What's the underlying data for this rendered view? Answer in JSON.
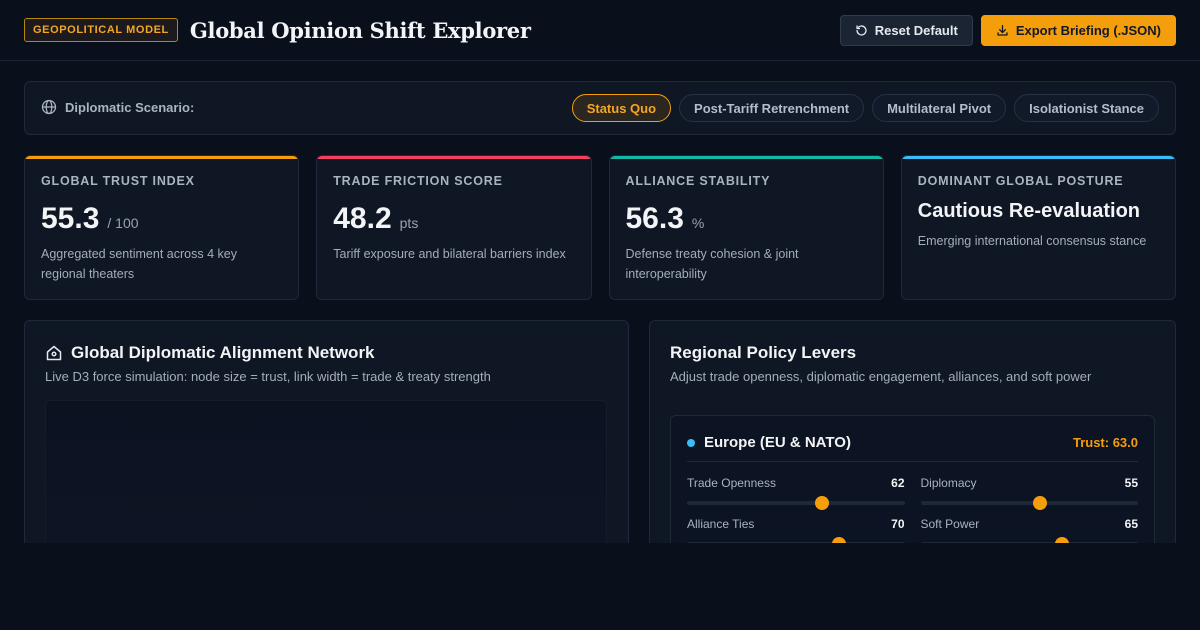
{
  "header": {
    "badge": "GEOPOLITICAL MODEL",
    "title": "Global Opinion Shift Explorer",
    "reset_label": "Reset Default",
    "export_label": "Export Briefing (.JSON)"
  },
  "scenario": {
    "label": "Diplomatic Scenario:",
    "tabs": [
      {
        "label": "Status Quo",
        "active": true
      },
      {
        "label": "Post-Tariff Retrenchment",
        "active": false
      },
      {
        "label": "Multilateral Pivot",
        "active": false
      },
      {
        "label": "Isolationist Stance",
        "active": false
      }
    ]
  },
  "cards": [
    {
      "label": "GLOBAL TRUST INDEX",
      "value": "55.3",
      "unit": "/ 100",
      "desc": "Aggregated sentiment across 4 key regional theaters",
      "accent": "#f59e0b"
    },
    {
      "label": "TRADE FRICTION SCORE",
      "value": "48.2",
      "unit": "pts",
      "desc": "Tariff exposure and bilateral barriers index",
      "accent": "#f43f5e"
    },
    {
      "label": "ALLIANCE STABILITY",
      "value": "56.3",
      "unit": "%",
      "desc": "Defense treaty cohesion & joint interoperability",
      "accent": "#14b8a6"
    },
    {
      "label": "DOMINANT GLOBAL POSTURE",
      "value": "Cautious Re-evaluation",
      "desc": "Emerging international consensus stance",
      "accent": "#38bdf8"
    }
  ],
  "network": {
    "title": "Global Diplomatic Alignment Network",
    "subtitle": "Live D3 force simulation: node size = trust, link width = trade & treaty strength"
  },
  "levers": {
    "title": "Regional Policy Levers",
    "subtitle": "Adjust trade openness, diplomatic engagement, alliances, and soft power",
    "region": {
      "name": "Europe (EU & NATO)",
      "trust": "Trust: 63.0",
      "dot_color": "#38bdf8",
      "sliders": [
        {
          "label": "Trade Openness",
          "value": 62
        },
        {
          "label": "Diplomacy",
          "value": 55
        },
        {
          "label": "Alliance Ties",
          "value": 70
        },
        {
          "label": "Soft Power",
          "value": 65
        }
      ]
    }
  },
  "icons": {
    "reset": "refresh-icon",
    "export": "download-icon",
    "scenario": "globe-icon",
    "network": "network-home-icon"
  }
}
